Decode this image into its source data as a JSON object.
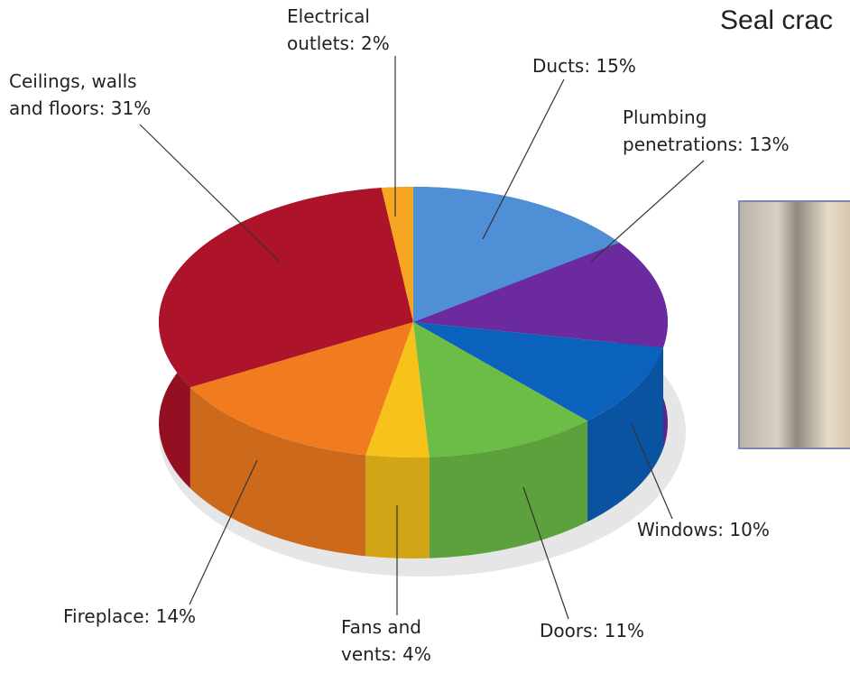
{
  "chart_data": {
    "type": "pie",
    "title": "Seal crac",
    "value_labels": [
      "Ducts: 15%",
      "Plumbing\npenetrations: 13%",
      "Windows: 10%",
      "Doors: 11%",
      "Fans and\nvents: 4%",
      "Fireplace: 14%",
      "Ceilings, walls\nand floors: 31%",
      "Electrical\noutlets: 2%"
    ],
    "values": [
      15,
      13,
      10,
      11,
      4,
      14,
      31,
      2
    ],
    "colors": [
      "#4f8fd6",
      "#6b2b9e",
      "#0b62bd",
      "#6cbd45",
      "#f7c21a",
      "#f07c1f",
      "#ad1329",
      "#f5a623"
    ]
  }
}
